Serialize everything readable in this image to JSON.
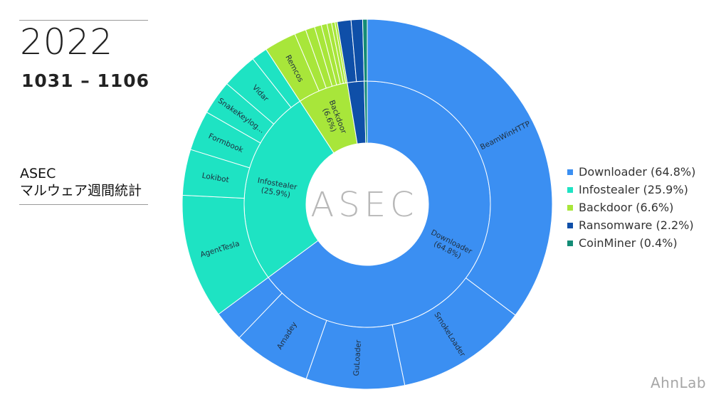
{
  "header": {
    "year": "2022",
    "range": "1031 – 1106",
    "title_line1": "ASEC",
    "title_line2": "マルウェア週間統計"
  },
  "brand": "AhnLab",
  "center_logo": "ASEC",
  "chart_data": {
    "type": "sunburst",
    "title": "ASEC マルウェア週間統計",
    "legend_position": "right",
    "categories": [
      {
        "name": "Downloader",
        "label": "Downloader\n(64.8%)",
        "legend": "Downloader (64.8%)",
        "value": 64.8,
        "color": "#3b8ff2",
        "children": [
          {
            "name": "BeamWinHTTP",
            "value": 35.2
          },
          {
            "name": "SmokeLoader",
            "value": 11.5
          },
          {
            "name": "GuLoader",
            "value": 8.6
          },
          {
            "name": "Amadey",
            "value": 6.8
          },
          {
            "name": "",
            "value": 2.7
          }
        ]
      },
      {
        "name": "Infostealer",
        "label": "Infostealer\n(25.9%)",
        "legend": "Infostealer (25.9%)",
        "value": 25.9,
        "color": "#1ee3c3",
        "children": [
          {
            "name": "AgentTesla",
            "value": 10.9
          },
          {
            "name": "Lokibot",
            "value": 4.0
          },
          {
            "name": "Formbook",
            "value": 3.5
          },
          {
            "name": "SnakeKeylog...",
            "value": 3.0
          },
          {
            "name": "Vidar",
            "value": 3.1
          },
          {
            "name": "",
            "value": 1.4
          }
        ]
      },
      {
        "name": "Backdoor",
        "label": "Backdoor\n(6.6%)",
        "legend": "Backdoor (6.6%)",
        "value": 6.6,
        "color": "#a8e63a",
        "children": [
          {
            "name": "Remcos",
            "value": 2.8
          },
          {
            "name": "",
            "value": 1.0
          },
          {
            "name": "",
            "value": 0.8
          },
          {
            "name": "",
            "value": 0.6
          },
          {
            "name": "",
            "value": 0.5
          },
          {
            "name": "",
            "value": 0.4
          },
          {
            "name": "",
            "value": 0.3
          },
          {
            "name": "",
            "value": 0.2
          }
        ]
      },
      {
        "name": "Ransomware",
        "label": "",
        "legend": "Ransomware (2.2%)",
        "value": 2.2,
        "color": "#0f4fa8",
        "children": [
          {
            "name": "",
            "value": 1.2
          },
          {
            "name": "",
            "value": 1.0
          }
        ]
      },
      {
        "name": "CoinMiner",
        "label": "",
        "legend": "CoinMiner (0.4%)",
        "value": 0.4,
        "color": "#138c76",
        "children": [
          {
            "name": "",
            "value": 0.4
          }
        ]
      }
    ]
  }
}
